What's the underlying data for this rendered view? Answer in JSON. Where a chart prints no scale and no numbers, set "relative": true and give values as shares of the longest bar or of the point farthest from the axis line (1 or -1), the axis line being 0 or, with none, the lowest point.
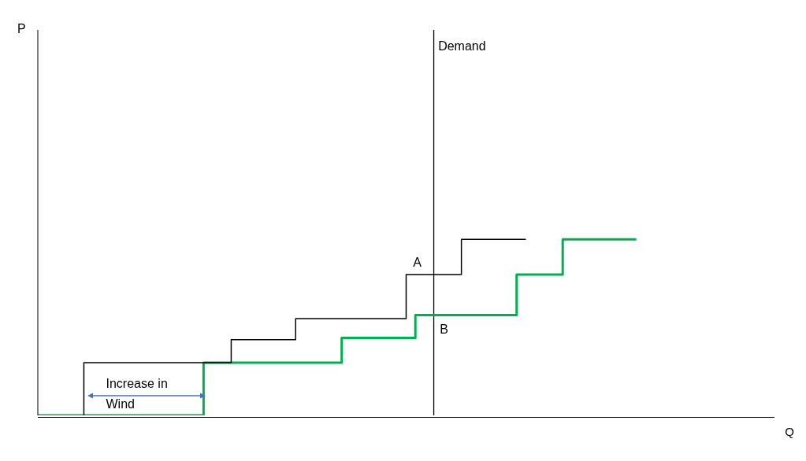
{
  "chart_data": {
    "type": "step",
    "relative": true,
    "xlabel": "Q",
    "categories": [
      null,
      null,
      null,
      null,
      null,
      null,
      null,
      null,
      null,
      null,
      null,
      null,
      null,
      null,
      null,
      null,
      null,
      null,
      null,
      null,
      null,
      null,
      null,
      null,
      null,
      null,
      null,
      null,
      null,
      null,
      null,
      null,
      null,
      null,
      null,
      null,
      null,
      null,
      null,
      null,
      null,
      null,
      null,
      null,
      null,
      null,
      null,
      null,
      null,
      null,
      null,
      null,
      null,
      null,
      null,
      null,
      null,
      null,
      null,
      null,
      null,
      null,
      null,
      null,
      null,
      null,
      null,
      null,
      null,
      null,
      null,
      null,
      null,
      null,
      null,
      null,
      null,
      null,
      null,
      null,
      null
    ],
    "series": [
      {
        "color": "#000000",
        "values": [
          null,
          null,
          null,
          null,
          null,
          0,
          0.3,
          0.3,
          0.3,
          0.3,
          0.3,
          0.3,
          0.3,
          0.3,
          0.3,
          0.3,
          0.3,
          0.3,
          0.3,
          0.3,
          0.3,
          0.3,
          0.43,
          0.43,
          0.43,
          0.43,
          0.43,
          0.43,
          0.43,
          0.55,
          0.55,
          0.55,
          0.55,
          0.55,
          0.55,
          0.55,
          0.55,
          0.55,
          0.55,
          0.55,
          0.55,
          0.8,
          0.8,
          0.8,
          0.8,
          0.8,
          0.8,
          1.0,
          1.0,
          1.0,
          1.0,
          1.0,
          1.0,
          1.0,
          null,
          null,
          null,
          null,
          null,
          null,
          null,
          null,
          null,
          null,
          null,
          null,
          null,
          null,
          null,
          null,
          null,
          null,
          null,
          null,
          null,
          null,
          null,
          null,
          null,
          null,
          null
        ]
      },
      {
        "color": "#00b050",
        "values": [
          0,
          0,
          0,
          0,
          0,
          0,
          0,
          0,
          0,
          0,
          0,
          0,
          0,
          0,
          0,
          0,
          0,
          0,
          0,
          0.3,
          0.3,
          0.3,
          0.3,
          0.3,
          0.3,
          0.3,
          0.3,
          0.3,
          0.3,
          0.3,
          0.3,
          0.3,
          0.3,
          0.3,
          0.44,
          0.44,
          0.44,
          0.44,
          0.44,
          0.44,
          0.44,
          0.44,
          0.57,
          0.57,
          0.57,
          0.57,
          0.57,
          0.57,
          0.57,
          0.57,
          0.57,
          0.57,
          0.57,
          0.8,
          0.8,
          0.8,
          0.8,
          0.8,
          1.0,
          1.0,
          1.0,
          1.0,
          1.0,
          1.0,
          1.0,
          1.0,
          null,
          null,
          null,
          null,
          null,
          null,
          null,
          null,
          null,
          null,
          null,
          null,
          null,
          null,
          null
        ]
      }
    ],
    "annotations": [
      "Demand",
      "A",
      "B",
      "Increase in Wind",
      "P"
    ]
  }
}
